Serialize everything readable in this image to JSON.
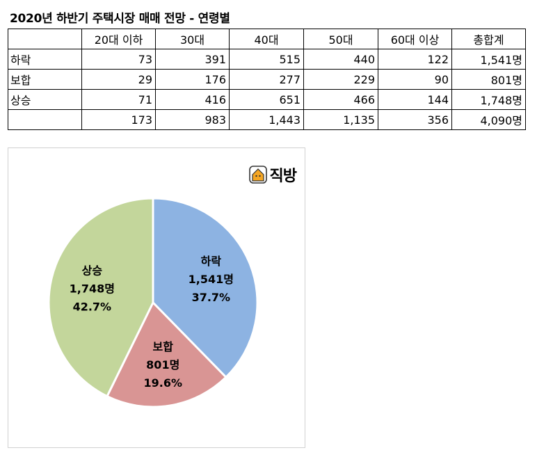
{
  "title": "2020년 하반기 주택시장 매매 전망 - 연령별",
  "table": {
    "headers": [
      "",
      "20대 이하",
      "30대",
      "40대",
      "50대",
      "60대 이상",
      "총합계"
    ],
    "rows": [
      {
        "label": "하락",
        "cells": [
          "73",
          "391",
          "515",
          "440",
          "122",
          "1,541명"
        ]
      },
      {
        "label": "보합",
        "cells": [
          "29",
          "176",
          "277",
          "229",
          "90",
          "801명"
        ]
      },
      {
        "label": "상승",
        "cells": [
          "71",
          "416",
          "651",
          "466",
          "144",
          "1,748명"
        ]
      },
      {
        "label": "",
        "cells": [
          "173",
          "983",
          "1,443",
          "1,135",
          "356",
          "4,090명"
        ]
      }
    ]
  },
  "logo": {
    "text": "직방",
    "icon": "house-icon"
  },
  "chart_data": {
    "type": "pie",
    "slices": [
      {
        "label": "하락",
        "value": 1541,
        "value_label": "1,541명",
        "percent_label": "37.7%",
        "color": "#8db3e2"
      },
      {
        "label": "보합",
        "value": 801,
        "value_label": "801명",
        "percent_label": "19.6%",
        "color": "#d99594"
      },
      {
        "label": "상승",
        "value": 1748,
        "value_label": "1,748명",
        "percent_label": "42.7%",
        "color": "#c3d69b"
      }
    ],
    "start": "12 o'clock",
    "direction": "clockwise",
    "legend": "none"
  }
}
